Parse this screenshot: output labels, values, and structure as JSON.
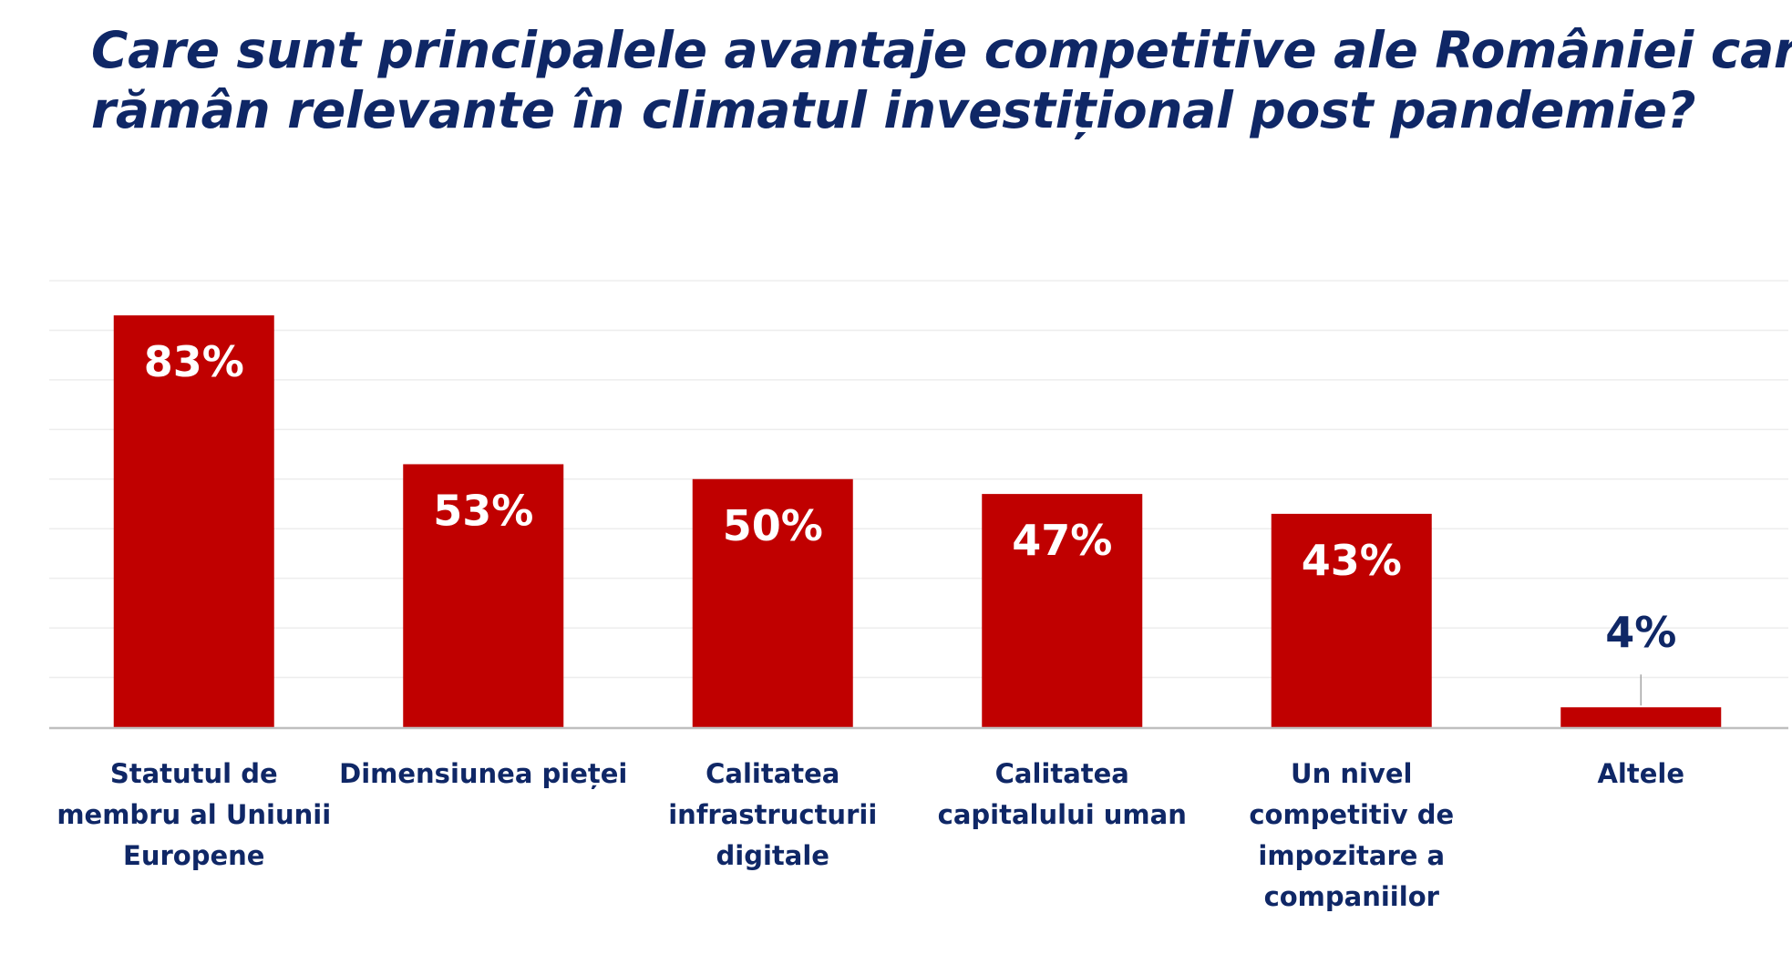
{
  "title_lines": [
    "Care sunt principalele avantaje competitive ale României care",
    "rămân relevante în climatul investițional post pandemie?"
  ],
  "colors": {
    "bar": "#c00000",
    "title": "#0f2766",
    "category_text": "#0f2766",
    "inside_label": "#ffffff",
    "outside_label": "#0f2766",
    "gridline": "#ededed",
    "axis": "#bfbfbf"
  },
  "chart_data": {
    "type": "bar",
    "title": "Care sunt principalele avantaje competitive ale României care rămân relevante în climatul investițional post pandemie?",
    "xlabel": "",
    "ylabel": "",
    "ylim": [
      0,
      90
    ],
    "grid": true,
    "legend": "none",
    "categories": [
      [
        "Statutul de",
        "membru al Uniunii",
        "Europene"
      ],
      [
        "Dimensiunea pieței"
      ],
      [
        "Calitatea",
        "infrastructurii",
        "digitale"
      ],
      [
        "Calitatea",
        "capitalului uman"
      ],
      [
        "Un nivel",
        "competitiv de",
        "impozitare a",
        "companiilor"
      ],
      [
        "Altele"
      ]
    ],
    "values": [
      83,
      53,
      50,
      47,
      43,
      4
    ],
    "data_labels": [
      "83%",
      "53%",
      "50%",
      "47%",
      "43%",
      "4%"
    ]
  }
}
